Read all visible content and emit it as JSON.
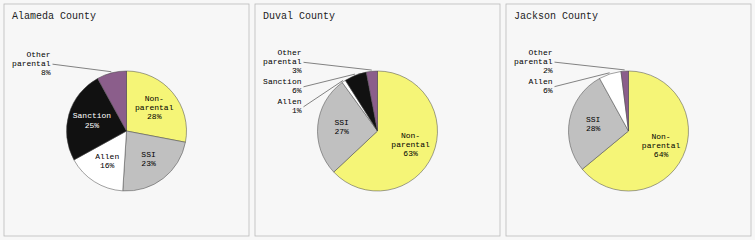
{
  "chart_data": [
    {
      "type": "pie",
      "title": "Alameda County",
      "categories": [
        "Non-\nparental",
        "SSI",
        "Allen",
        "Sanction",
        "Other\nparental"
      ],
      "values": [
        28,
        23,
        16,
        25,
        8
      ],
      "value_labels": [
        "28%",
        "23%",
        "16%",
        "25%",
        "8%"
      ],
      "colors": [
        "#f5f577",
        "#c0c0c0",
        "#ffffff",
        "#111111",
        "#8b5e8b"
      ],
      "data_labels": true
    },
    {
      "type": "pie",
      "title": "Duval County",
      "categories": [
        "Non-\nparental",
        "SSI",
        "Allen",
        "Sanction",
        "Other\nparental"
      ],
      "values": [
        63,
        27,
        1,
        6,
        3
      ],
      "value_labels": [
        "63%",
        "27%",
        "1%",
        "6%",
        "3%"
      ],
      "colors": [
        "#f5f577",
        "#c0c0c0",
        "#ffffff",
        "#111111",
        "#8b5e8b"
      ],
      "data_labels": true
    },
    {
      "type": "pie",
      "title": "Jackson County",
      "categories": [
        "Non-\nparental",
        "SSI",
        "Allen",
        "Other\nparental"
      ],
      "values": [
        64,
        28,
        6,
        2
      ],
      "value_labels": [
        "64%",
        "28%",
        "6%",
        "2%"
      ],
      "colors": [
        "#f5f577",
        "#c0c0c0",
        "#ffffff",
        "#8b5e8b"
      ],
      "data_labels": true
    }
  ]
}
